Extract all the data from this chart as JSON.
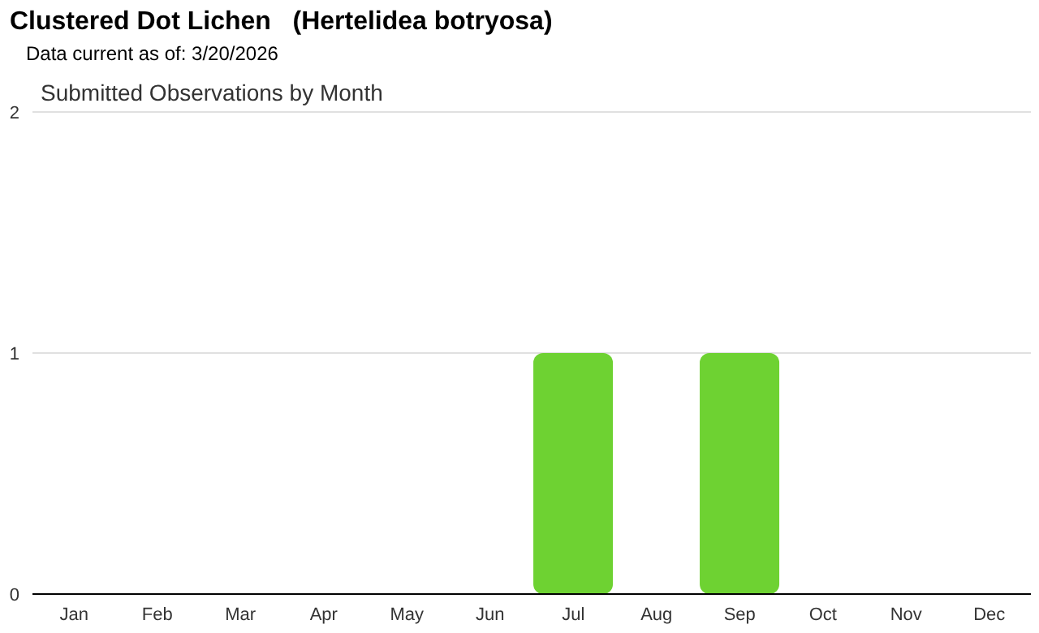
{
  "chart_data": {
    "type": "bar",
    "title": "Clustered Dot Lichen   (Hertelidea botryosa)",
    "subtitle": "Submitted Observations by Month",
    "annotations": [
      "Data current as of: 3/20/2026"
    ],
    "categories": [
      "Jan",
      "Feb",
      "Mar",
      "Apr",
      "May",
      "Jun",
      "Jul",
      "Aug",
      "Sep",
      "Oct",
      "Nov",
      "Dec"
    ],
    "values": [
      0,
      0,
      0,
      0,
      0,
      0,
      1,
      0,
      1,
      0,
      0,
      0
    ],
    "color": "#6ed232",
    "ylim": [
      0,
      2
    ],
    "yticks": [
      0,
      1,
      2
    ],
    "grid": "y"
  }
}
